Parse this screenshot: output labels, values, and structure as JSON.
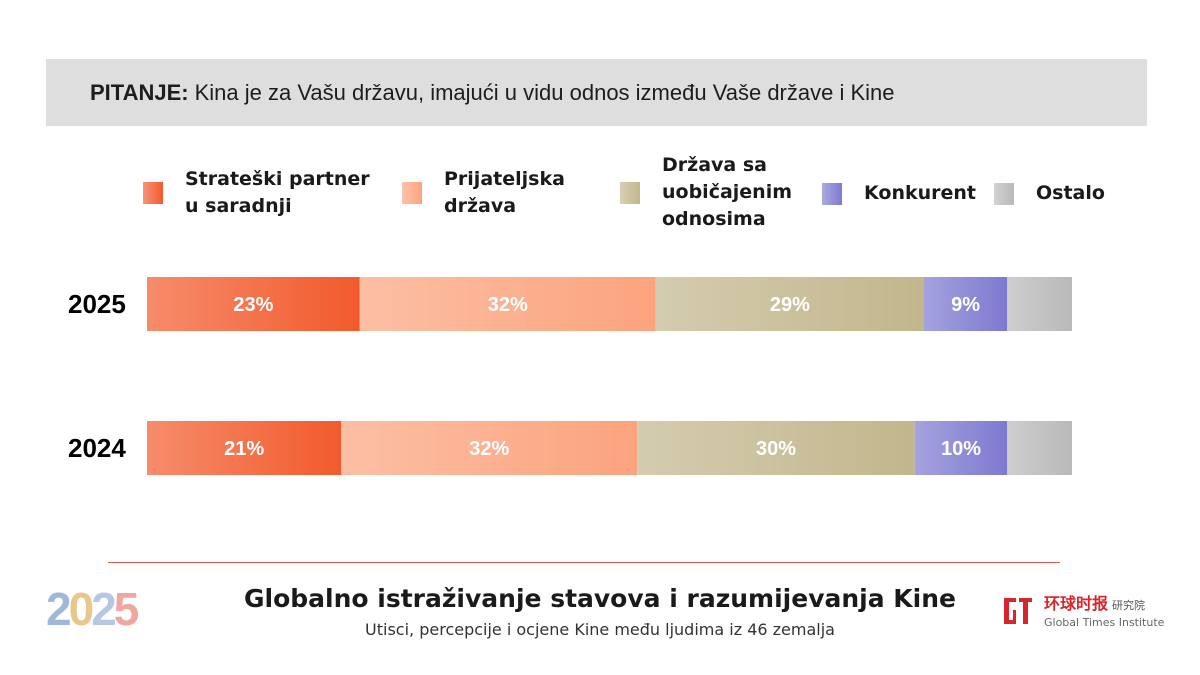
{
  "question": {
    "label": "PITANJE:",
    "text": "Kina je za Vašu državu, imajući u vidu odnos između Vaše države i Kine"
  },
  "chart_data": {
    "type": "bar",
    "orientation": "horizontal-stacked-100",
    "categories": [
      "2025",
      "2024"
    ],
    "series": [
      {
        "name": "Strateški partner\nu saradnji",
        "color": "#f25a2c",
        "values": [
          23,
          21
        ]
      },
      {
        "name": "Prijateljska\ndržava",
        "color": "#fba37d",
        "values": [
          32,
          32
        ]
      },
      {
        "name": "Država sa\nuobičajenim\nodnosima",
        "color": "#c2b68c",
        "values": [
          29,
          30
        ]
      },
      {
        "name": "Konkurent",
        "color": "#7d7ad0",
        "values": [
          9,
          10
        ]
      },
      {
        "name": "Ostalo",
        "color": "#b9b9b9",
        "values": [
          7,
          7
        ]
      }
    ],
    "data_labels": [
      [
        "23%",
        "32%",
        "29%",
        "9%",
        ""
      ],
      [
        "21%",
        "32%",
        "30%",
        "10%",
        ""
      ]
    ],
    "legend_position": "top",
    "grid": false
  },
  "footer": {
    "logo_digits": [
      "2",
      "0",
      "2",
      "5"
    ],
    "title": "Globalno istraživanje stavova i razumijevanja Kine",
    "subtitle": "Utisci, percepcije i ocjene Kine među ljudima iz 46 zemalja"
  },
  "brand": {
    "chinese_name": "环球时报",
    "chinese_suffix": "研究院",
    "english_name": "Global Times Institute",
    "color": "#d8262d"
  }
}
